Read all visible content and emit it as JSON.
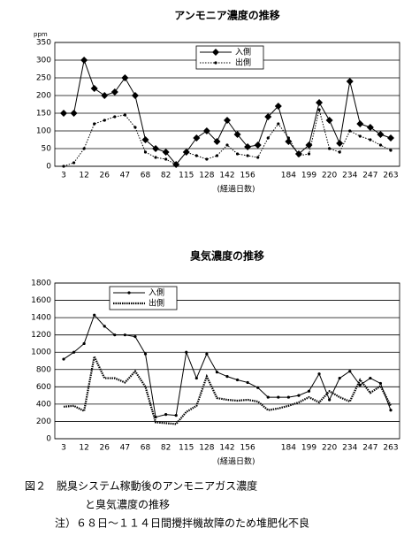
{
  "chart_data": [
    {
      "type": "line",
      "title": "アンモニア濃度の推移",
      "y_label": "ppm",
      "x_label": "(経過日数)",
      "categories": [
        "3",
        null,
        "12",
        null,
        "26",
        null,
        "47",
        null,
        "68",
        null,
        "82",
        null,
        "115",
        null,
        "128",
        null,
        "142",
        null,
        "156",
        null,
        null,
        null,
        "184",
        null,
        "199",
        null,
        "220",
        null,
        "234",
        null,
        "247",
        null,
        "263"
      ],
      "series": [
        {
          "name": "入側",
          "color": "#000000",
          "marker": "diamond",
          "line": "solid",
          "values": [
            150,
            150,
            300,
            220,
            200,
            210,
            250,
            200,
            75,
            50,
            40,
            5,
            40,
            80,
            100,
            70,
            130,
            90,
            55,
            60,
            140,
            170,
            70,
            35,
            60,
            180,
            130,
            65,
            240,
            120,
            110,
            90,
            80
          ]
        },
        {
          "name": "出側",
          "color": "#000000",
          "marker": "dot",
          "line": "dotted",
          "values": [
            0,
            10,
            50,
            120,
            130,
            140,
            145,
            110,
            40,
            25,
            20,
            5,
            40,
            30,
            20,
            30,
            60,
            35,
            30,
            25,
            80,
            120,
            80,
            30,
            35,
            160,
            50,
            40,
            100,
            85,
            75,
            60,
            45
          ]
        }
      ],
      "ylim": [
        0,
        350
      ],
      "yticks": [
        0,
        50,
        100,
        150,
        200,
        250,
        300,
        350
      ],
      "grid": true,
      "legend": "upper center"
    },
    {
      "type": "line",
      "title": "臭気濃度の推移",
      "x_label": "(経過日数)",
      "categories": [
        "3",
        null,
        "12",
        null,
        "26",
        null,
        "47",
        null,
        "68",
        null,
        "82",
        null,
        "115",
        null,
        "128",
        null,
        "142",
        null,
        "156",
        null,
        null,
        null,
        "184",
        null,
        "199",
        null,
        "220",
        null,
        "234",
        null,
        "247",
        null,
        "263"
      ],
      "series": [
        {
          "name": "入側",
          "color": "#000000",
          "marker": "dot",
          "line": "solid",
          "values": [
            920,
            1000,
            1100,
            1430,
            1300,
            1200,
            1200,
            1180,
            980,
            250,
            280,
            270,
            1000,
            700,
            980,
            770,
            720,
            680,
            650,
            590,
            480,
            480,
            480,
            500,
            550,
            750,
            450,
            700,
            780,
            620,
            700,
            640,
            330
          ]
        },
        {
          "name": "出側",
          "color": "#000000",
          "marker": "none",
          "line": "thick-dotted",
          "values": [
            370,
            380,
            320,
            950,
            700,
            700,
            650,
            780,
            600,
            190,
            180,
            170,
            310,
            380,
            720,
            470,
            450,
            440,
            450,
            430,
            330,
            350,
            380,
            420,
            480,
            420,
            550,
            480,
            430,
            680,
            530,
            610,
            380
          ]
        }
      ],
      "ylim": [
        0,
        1800
      ],
      "yticks": [
        0,
        200,
        400,
        600,
        800,
        1000,
        1200,
        1400,
        1600,
        1800
      ],
      "grid": true,
      "legend": "upper left"
    }
  ],
  "caption": {
    "line1": "図２　脱臭システム稼動後のアンモニアガス濃度",
    "line2": "と臭気濃度の推移",
    "note": "注）６８日～１１４日間攪拌機故障のため堆肥化不良"
  }
}
